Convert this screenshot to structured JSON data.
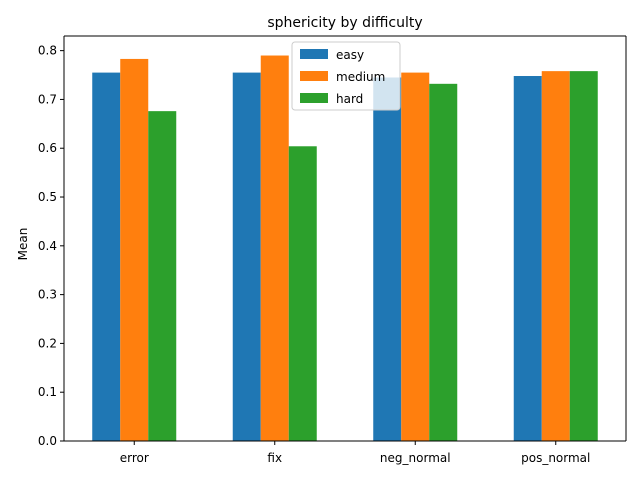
{
  "chart_data": {
    "type": "bar",
    "title": "sphericity by difficulty",
    "xlabel": "",
    "ylabel": "Mean",
    "categories": [
      "error",
      "fix",
      "neg_normal",
      "pos_normal"
    ],
    "series": [
      {
        "name": "easy",
        "color": "#1f77b4",
        "values": [
          0.755,
          0.755,
          0.745,
          0.748
        ]
      },
      {
        "name": "medium",
        "color": "#ff7f0e",
        "values": [
          0.783,
          0.79,
          0.755,
          0.758
        ]
      },
      {
        "name": "hard",
        "color": "#2ca02c",
        "values": [
          0.676,
          0.604,
          0.732,
          0.758
        ]
      }
    ],
    "ylim": [
      0,
      0.83
    ],
    "yticks": [
      "0.0",
      "0.1",
      "0.2",
      "0.3",
      "0.4",
      "0.5",
      "0.6",
      "0.7",
      "0.8"
    ],
    "legend_position": "top-center",
    "grid": false
  }
}
